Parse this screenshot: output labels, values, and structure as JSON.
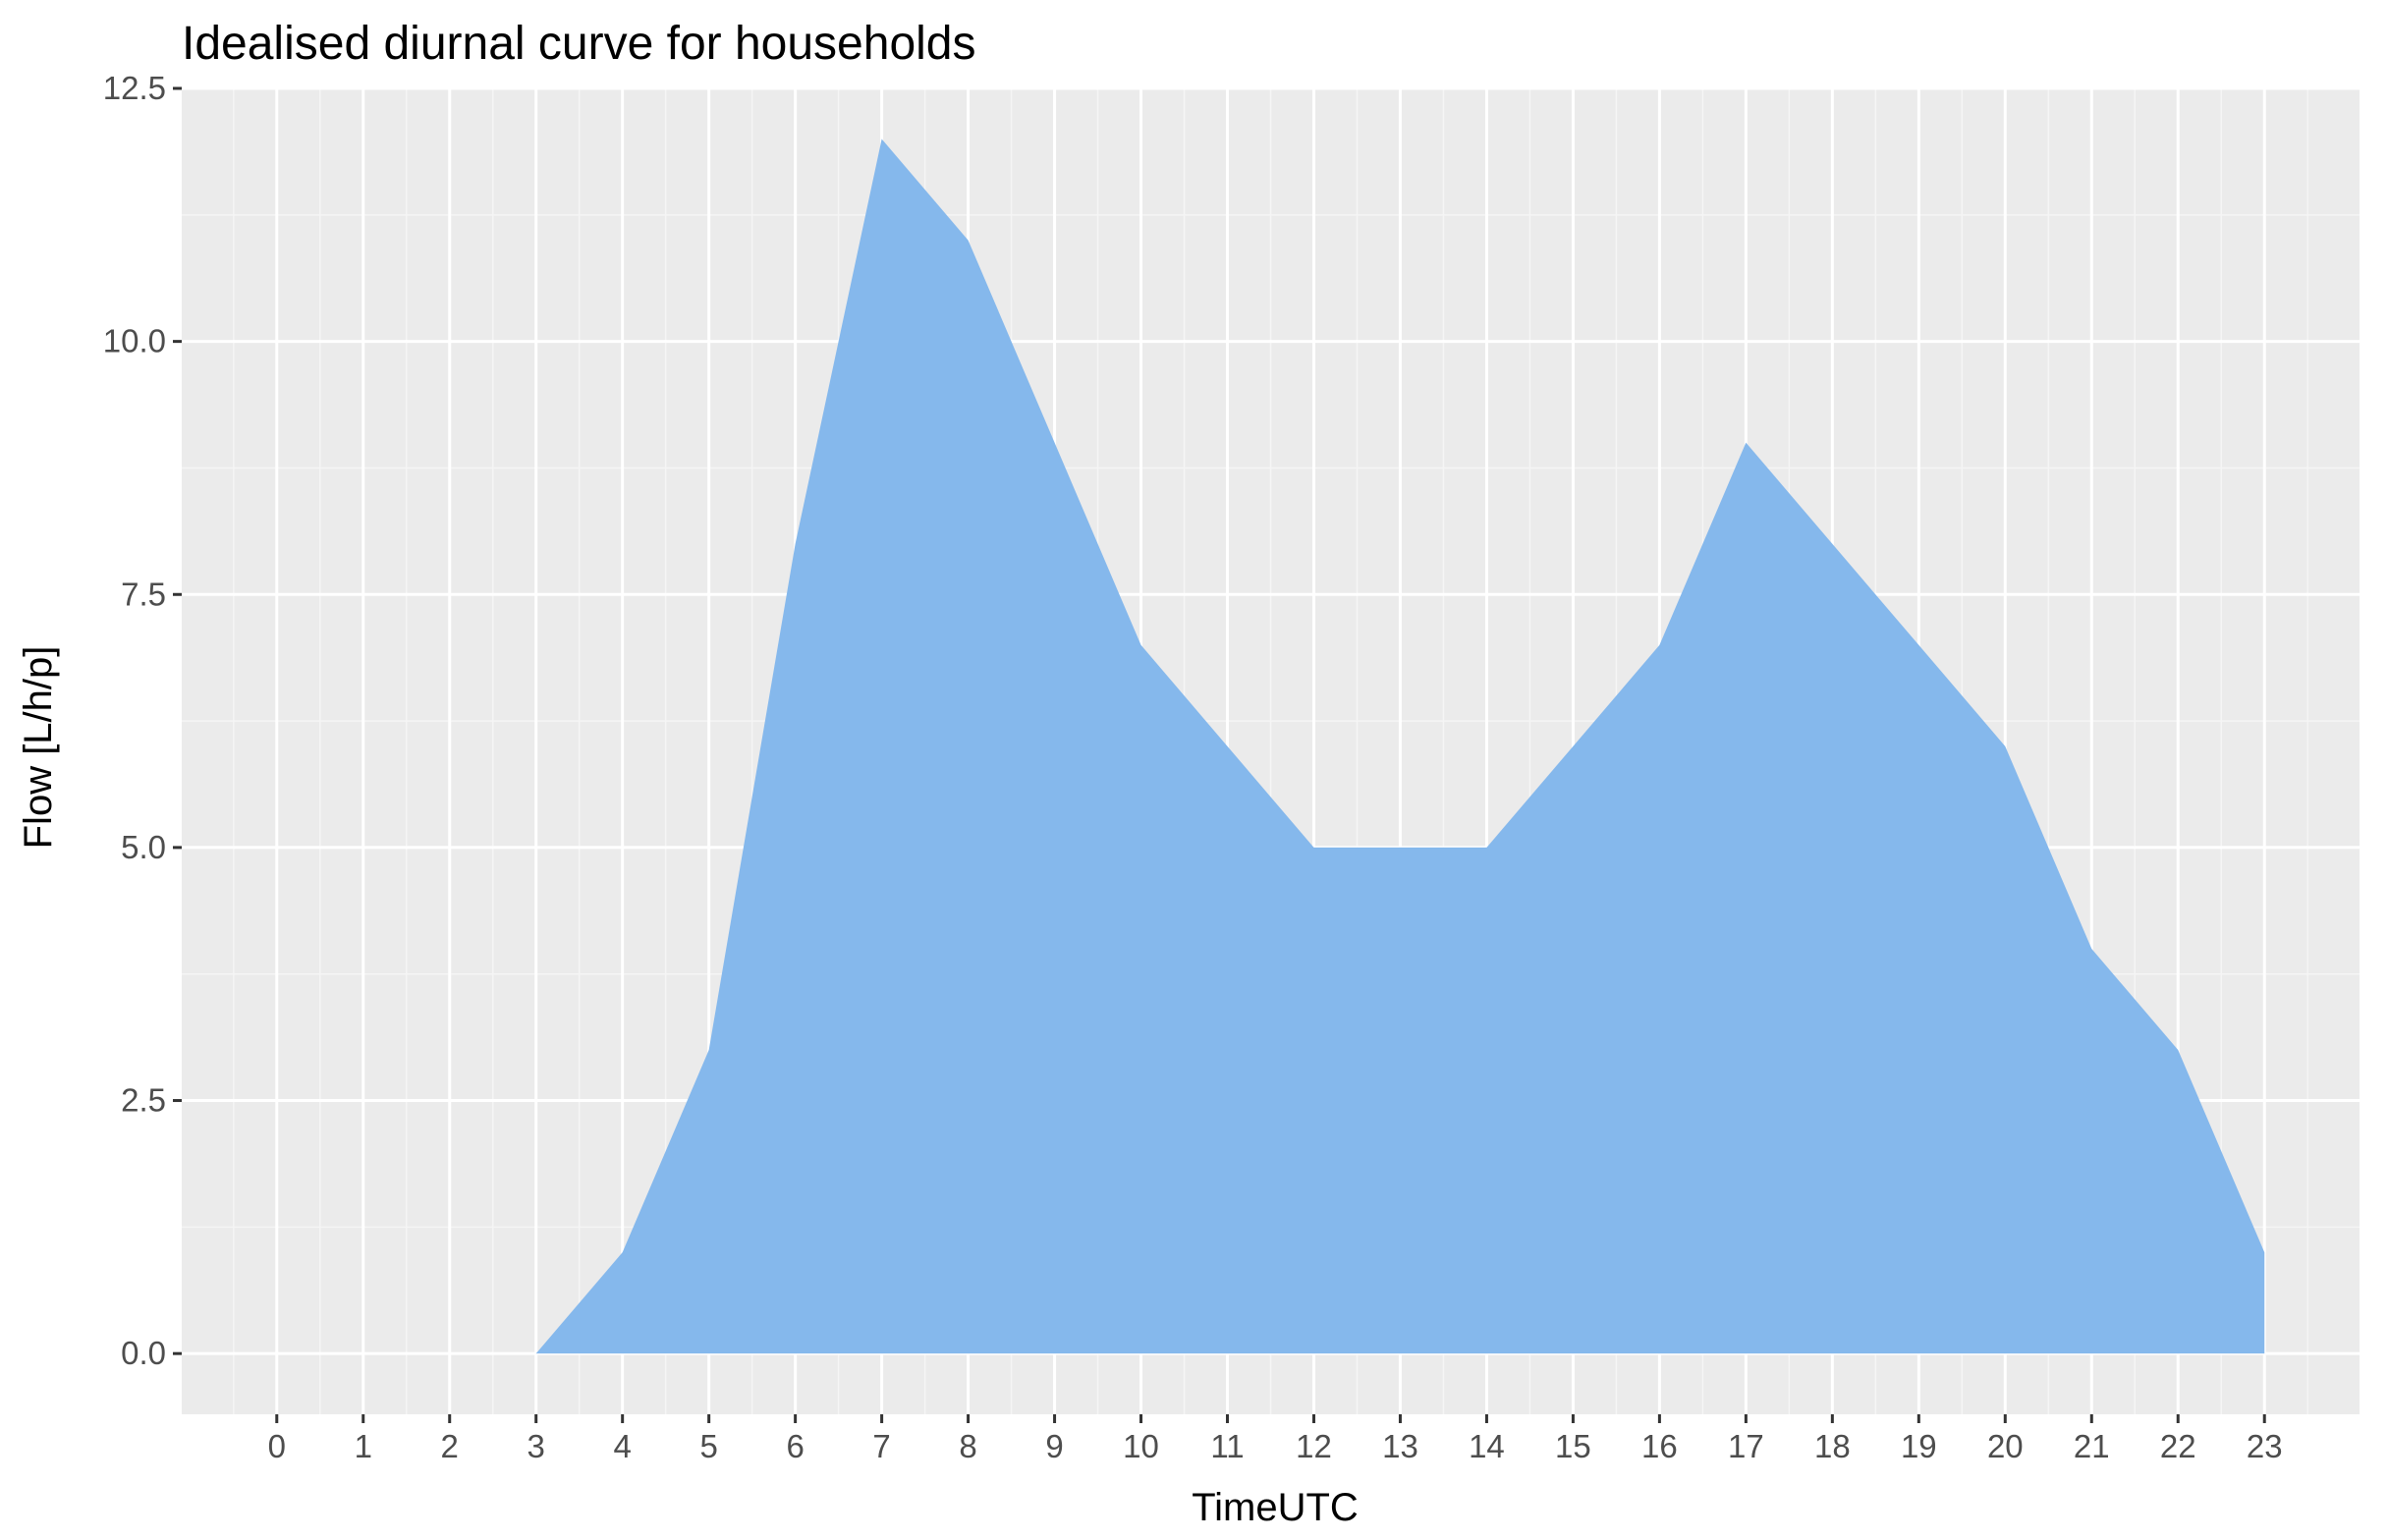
{
  "chart_data": {
    "type": "area",
    "title": "Idealised diurnal curve for households",
    "xlabel": "TimeUTC",
    "ylabel": "Flow [L/h/p]",
    "x": [
      3,
      4,
      5,
      6,
      7,
      8,
      9,
      10,
      11,
      12,
      13,
      14,
      15,
      16,
      17,
      18,
      19,
      20,
      21,
      22,
      23
    ],
    "values": [
      0,
      1,
      3,
      8,
      12,
      11,
      9,
      7,
      6,
      5,
      5,
      5,
      6,
      7,
      9,
      8,
      7,
      6,
      4,
      3,
      1
    ],
    "x_ticks": [
      "0",
      "1",
      "2",
      "3",
      "4",
      "5",
      "6",
      "7",
      "8",
      "9",
      "10",
      "11",
      "12",
      "13",
      "14",
      "15",
      "16",
      "17",
      "18",
      "19",
      "20",
      "21",
      "22",
      "23"
    ],
    "y_ticks": [
      "0.0",
      "2.5",
      "5.0",
      "7.5",
      "10.0",
      "12.5"
    ],
    "xlim": [
      -1.1,
      24.1
    ],
    "ylim": [
      -0.6,
      12.5
    ],
    "grid": true,
    "colors": {
      "fill": "#85b8ec",
      "panel": "#ebebeb",
      "grid_major": "#ffffff",
      "grid_minor": "#f5f5f5",
      "tick_text": "#4d4d4d"
    }
  }
}
